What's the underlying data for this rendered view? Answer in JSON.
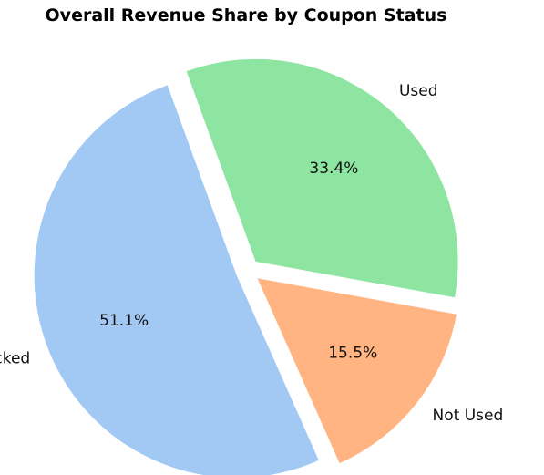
{
  "chart_data": {
    "type": "pie",
    "title": "Overall Revenue Share by Coupon Status",
    "slices": [
      {
        "label": "Used",
        "value": 33.4,
        "pct_label": "33.4%",
        "color": "#8de5a1"
      },
      {
        "label": "Not Used",
        "value": 15.5,
        "pct_label": "15.5%",
        "color": "#ffb482"
      },
      {
        "label": "Clicked",
        "value": 51.1,
        "pct_label": "51.1%",
        "color": "#a1c9f4"
      }
    ],
    "start_angle_deg": 110,
    "direction": "clockwise",
    "explode": true,
    "legend": "none"
  }
}
